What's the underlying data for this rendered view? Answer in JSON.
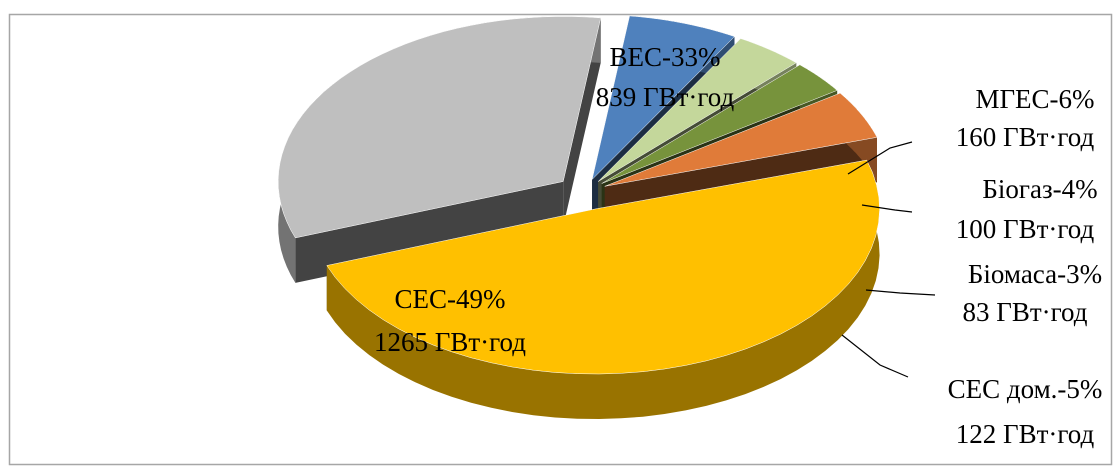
{
  "chart_data": {
    "type": "pie3d",
    "categories": [
      "ВЕС-33%",
      "МГЕС-6%",
      "Біогаз-4%",
      "Біомаса-3%",
      "СЕС дом.-5%",
      "СЕС-49%"
    ],
    "values": [
      839,
      160,
      100,
      83,
      122,
      1265
    ],
    "value_labels": [
      "839 ГВт·год",
      "160 ГВт·год",
      "100 ГВт·год",
      "83 ГВт·год",
      "122 ГВт·год",
      "1265 ГВт·год"
    ],
    "colors": [
      "#bfbfbf",
      "#4f81bd",
      "#c4d79b",
      "#77933c",
      "#e07b39",
      "#ffc000"
    ]
  }
}
